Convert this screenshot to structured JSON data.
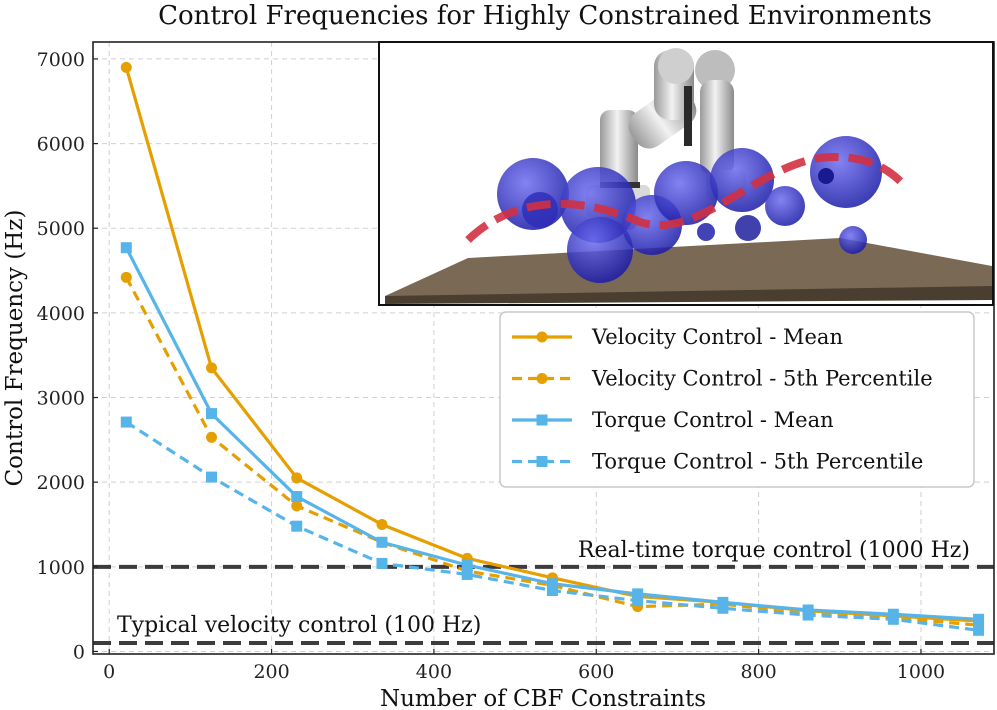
{
  "chart_data": {
    "type": "line",
    "title": "Control Frequencies for Highly Constrained Environments",
    "xlabel": "Number of CBF Constraints",
    "ylabel": "Control Frequency (Hz)",
    "xlim": [
      -20,
      1090
    ],
    "ylim": [
      -30,
      7200
    ],
    "xticks": [
      0,
      200,
      400,
      600,
      800,
      1000
    ],
    "yticks": [
      0,
      1000,
      2000,
      3000,
      4000,
      5000,
      6000,
      7000
    ],
    "grid": true,
    "legend_position": "center-right",
    "x": [
      21,
      126,
      231,
      336,
      441,
      546,
      651,
      756,
      861,
      966,
      1071
    ],
    "series": [
      {
        "name": "Velocity Control - Mean",
        "color": "#E69F00",
        "marker": "circle",
        "linestyle": "solid",
        "values": [
          6900,
          3350,
          2050,
          1500,
          1100,
          870,
          650,
          580,
          480,
          420,
          360
        ]
      },
      {
        "name": "Velocity Control - 5th Percentile",
        "color": "#E69F00",
        "marker": "circle",
        "linestyle": "dashed",
        "values": [
          4420,
          2530,
          1720,
          1290,
          950,
          780,
          530,
          560,
          450,
          400,
          310
        ]
      },
      {
        "name": "Torque Control - Mean",
        "color": "#56B4E9",
        "marker": "square",
        "linestyle": "solid",
        "values": [
          4770,
          2810,
          1830,
          1290,
          1020,
          800,
          680,
          580,
          490,
          440,
          380
        ]
      },
      {
        "name": "Torque Control - 5th Percentile",
        "color": "#56B4E9",
        "marker": "square",
        "linestyle": "dashed",
        "values": [
          2710,
          2060,
          1480,
          1040,
          910,
          720,
          600,
          510,
          430,
          380,
          250
        ]
      }
    ],
    "reference_lines": [
      {
        "label": "Real-time torque control (1000 Hz)",
        "y": 1000,
        "color": "#3c3c3c"
      },
      {
        "label": "Typical velocity control (100 Hz)",
        "y": 100,
        "color": "#3c3c3c"
      }
    ],
    "inset": {
      "description": "robot arm among obstacle spheres"
    }
  }
}
